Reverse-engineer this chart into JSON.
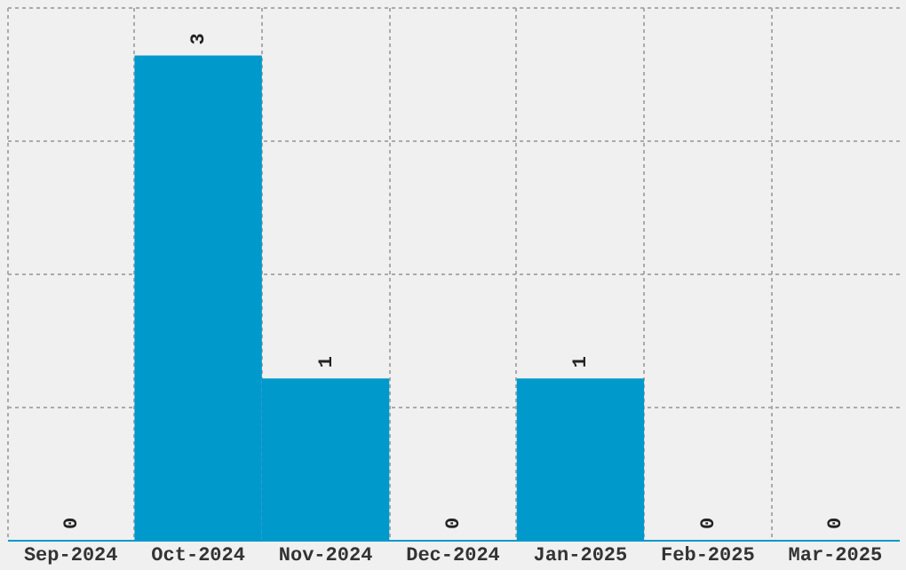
{
  "chart_data": {
    "type": "bar",
    "categories": [
      "Sep-2024",
      "Oct-2024",
      "Nov-2024",
      "Dec-2024",
      "Jan-2025",
      "Feb-2025",
      "Mar-2025"
    ],
    "values": [
      0,
      3,
      1,
      0,
      1,
      0,
      0
    ],
    "color": "#0099cc",
    "data_labels": true,
    "ylim": [
      0,
      3.3
    ],
    "yticks": [
      {
        "value": 0.825,
        "label": null
      },
      {
        "value": 1.65,
        "label": null
      },
      {
        "value": 2.475,
        "label": null
      },
      {
        "value": 3.3,
        "label": null
      }
    ],
    "grid": true,
    "tick_labels": "x"
  }
}
